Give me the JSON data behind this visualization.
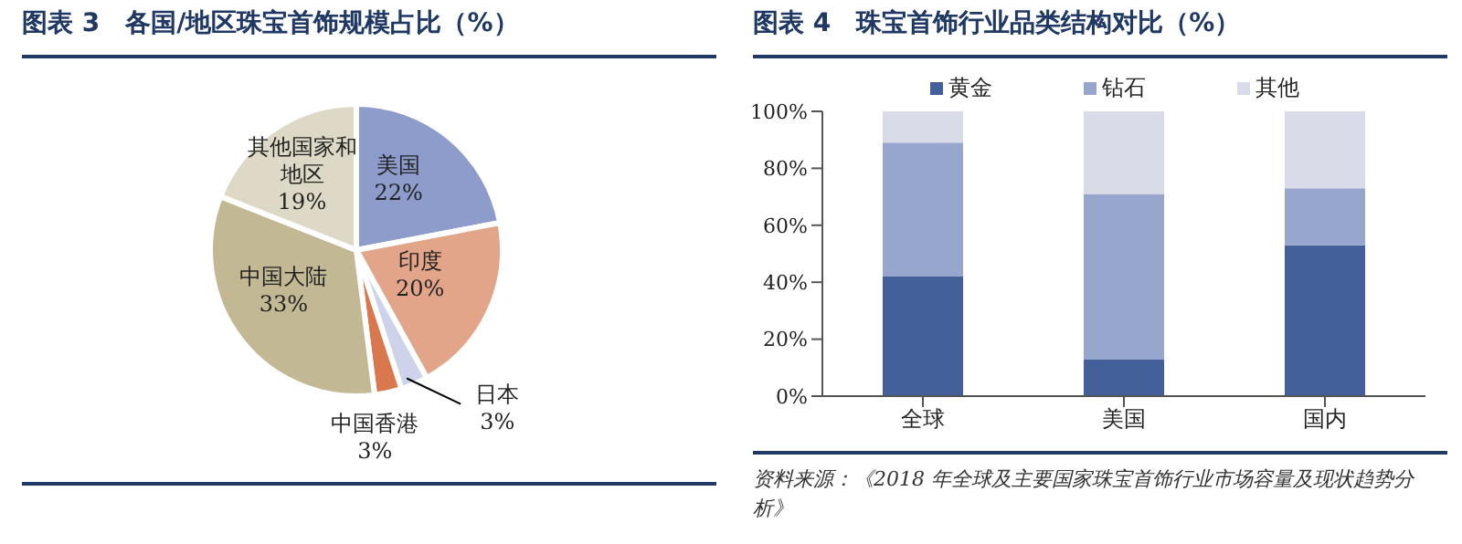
{
  "chart_data": [
    {
      "type": "pie",
      "title": "图表 3　各国/地区珠宝首饰规模占比（%）",
      "categories": [
        "美国",
        "印度",
        "日本",
        "中国香港",
        "中国大陆",
        "其他国家和地区"
      ],
      "values": [
        22,
        20,
        3,
        3,
        33,
        19
      ],
      "colors": [
        "#8e9ccb",
        "#e3a58a",
        "#cdd3ea",
        "#d9774f",
        "#c2b994",
        "#ddd9c6"
      ],
      "value_labels": [
        "22%",
        "20%",
        "3%",
        "3%",
        "33%",
        "19%"
      ]
    },
    {
      "type": "bar",
      "title": "图表 4　珠宝首饰行业品类结构对比（%）",
      "categories": [
        "全球",
        "美国",
        "国内"
      ],
      "stacked": true,
      "legend": "top",
      "grid": false,
      "series": [
        {
          "name": "黄金",
          "color": "#44609a",
          "values": [
            42,
            13,
            53
          ]
        },
        {
          "name": "钻石",
          "color": "#97a6cc",
          "values": [
            47,
            58,
            20
          ]
        },
        {
          "name": "其他",
          "color": "#d9dce8",
          "values": [
            11,
            29,
            27
          ]
        }
      ],
      "ylim": [
        0,
        100
      ],
      "yticks": [
        {
          "value": 0,
          "label": "0%"
        },
        {
          "value": 20,
          "label": "20%"
        },
        {
          "value": 40,
          "label": "40%"
        },
        {
          "value": 60,
          "label": "60%"
        },
        {
          "value": 80,
          "label": "80%"
        },
        {
          "value": 100,
          "label": "100%"
        }
      ],
      "annotations": [
        "资料来源：《2018 年全球及主要国家珠宝首饰行业市场容量及现状趋势分析》"
      ]
    }
  ]
}
